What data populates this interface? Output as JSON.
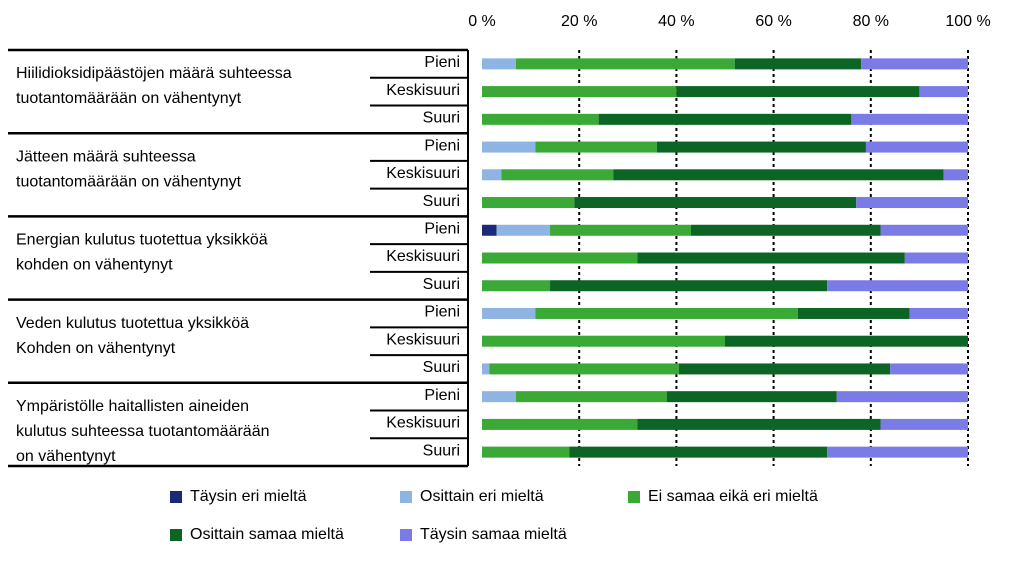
{
  "chart_data": {
    "type": "stacked-bar-horizontal",
    "groups": [
      [
        "Hiilidioksidipäästöjen määrä suhteessa",
        "tuotantomäärään on vähentynyt"
      ],
      [
        "Jätteen määrä suhteessa",
        "tuotantomäärään on vähentynyt"
      ],
      [
        "Energian kulutus tuotettua yksikköä",
        "kohden on vähentynyt"
      ],
      [
        "Veden kulutus tuotettua yksikköä",
        "Kohden on vähentynyt"
      ],
      [
        "Ympäristölle haitallisten aineiden",
        "kulutus suhteessa tuotantomäärään",
        "on vähentynyt"
      ]
    ],
    "categories": [
      "Pieni",
      "Keskisuuri",
      "Suuri",
      "Pieni",
      "Keskisuuri",
      "Suuri",
      "Pieni",
      "Keskisuuri",
      "Suuri",
      "Pieni",
      "Keskisuuri",
      "Suuri",
      "Pieni",
      "Keskisuuri",
      "Suuri"
    ],
    "series": [
      {
        "name": "Täysin eri mieltä",
        "color": "#1b2a78",
        "values": [
          0,
          0,
          0,
          0,
          0,
          0,
          3,
          0,
          0,
          0,
          0,
          0,
          0,
          0,
          0
        ]
      },
      {
        "name": "Osittain eri mieltä",
        "color": "#8db4e2",
        "values": [
          7,
          0,
          0,
          11,
          4,
          0,
          11,
          0,
          0,
          11,
          0,
          1.5,
          7,
          0,
          0
        ]
      },
      {
        "name": "Ei samaa eikä eri mieltä",
        "color": "#3aa935",
        "values": [
          45,
          40,
          24,
          25,
          23,
          19,
          29,
          32,
          14,
          54,
          50,
          39,
          31,
          32,
          18
        ]
      },
      {
        "name": "Osittain samaa mieltä",
        "color": "#0c6524",
        "values": [
          26,
          50,
          52,
          43,
          68,
          58,
          39,
          55,
          57,
          23,
          50,
          43.5,
          35,
          50,
          53
        ]
      },
      {
        "name": "Täysin samaa mieltä",
        "color": "#7b7be8",
        "values": [
          22,
          10,
          24,
          21,
          5,
          23,
          18,
          13,
          29,
          12,
          0,
          16,
          27,
          18,
          29
        ]
      }
    ],
    "xlim": [
      0,
      100
    ],
    "xticks": [
      {
        "value": 0,
        "label": "0 %"
      },
      {
        "value": 20,
        "label": "20 %"
      },
      {
        "value": 40,
        "label": "40 %"
      },
      {
        "value": 60,
        "label": "60 %"
      },
      {
        "value": 80,
        "label": "80 %"
      },
      {
        "value": 100,
        "label": "100 %"
      }
    ],
    "grid": true
  }
}
